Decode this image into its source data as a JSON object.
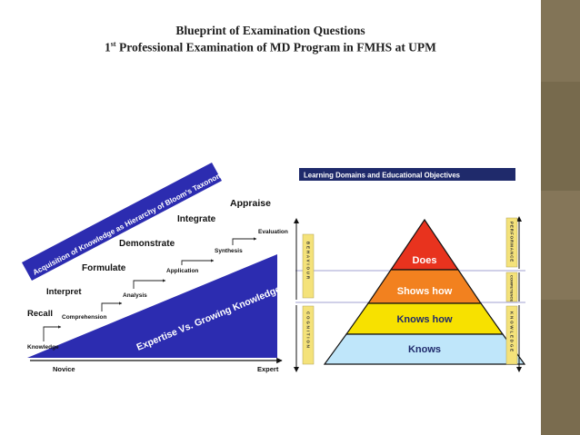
{
  "title": {
    "line1": "Blueprint of Examination Questions",
    "line2_prefix": "1",
    "line2_sup": "st",
    "line2_rest": " Professional Examination of MD Program in FMHS at UPM"
  },
  "left_diagram": {
    "banner_text": "Acquisition of Knowledge as Hierarchy of Bloom's Taxonomy",
    "triangle_text": "Expertise Vs. Growing Knowledge",
    "axis_left": "Novice",
    "axis_right": "Expert",
    "upper_steps": [
      "Recall",
      "Interpret",
      "Formulate",
      "Demonstrate",
      "Integrate",
      "Appraise"
    ],
    "lower_steps": [
      "Knowledge",
      "Comprehension",
      "Analysis",
      "Application",
      "Synthesis",
      "Evaluation"
    ]
  },
  "right_diagram": {
    "header": "Learning Domains and Educational Objectives",
    "levels": [
      {
        "label": "Does",
        "color": "#e8331e"
      },
      {
        "label": "Shows how",
        "color": "#f2811f"
      },
      {
        "label": "Knows how",
        "color": "#f7e100"
      },
      {
        "label": "Knows",
        "color": "#bfe6fa"
      }
    ],
    "left_tags": [
      "BEHAVIOUR",
      "COGNITION"
    ],
    "right_tags": [
      "PERFORMANCE",
      "COMPETENCE",
      "KNOWLEDGE"
    ],
    "colors": {
      "header_bg": "#1f2a6b",
      "tag_bg": "#f4e27a",
      "accent": "#2c2cb0"
    }
  }
}
